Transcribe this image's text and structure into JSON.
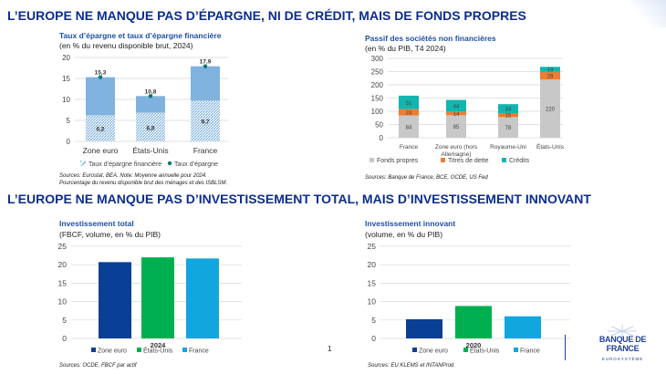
{
  "headings": {
    "top": "L’EUROPE NE MANQUE PAS D’ÉPARGNE, NI DE CRÉDIT, MAIS DE FONDS PROPRES",
    "bottom": "L’EUROPE NE MANQUE PAS D’INVESTISSEMENT TOTAL, MAIS D’INVESTISSEMENT INNOVANT"
  },
  "page_number": "1",
  "logo": {
    "name": "BANQUE DE FRANCE",
    "sub": "EUROSYSTÈME"
  },
  "colors": {
    "heading": "#0b2d8f",
    "zone_euro": "#0a3f96",
    "etats_unis": "#00b050",
    "france": "#12a6df",
    "fonds": "#c8c8c8",
    "titres": "#ed7d31",
    "credits": "#12b5b0",
    "epargne": "#7fb2de",
    "dot": "#007a6e"
  },
  "chart_data": [
    {
      "type": "bar",
      "title": "Taux d’épargne et taux d’épargne financière",
      "subtitle": "(en % du revenu disponible brut, 2024)",
      "categories": [
        "Zone euro",
        "États-Unis",
        "France"
      ],
      "series": [
        {
          "name": "Taux d’épargne financière",
          "values": [
            6.2,
            6.8,
            9.7
          ],
          "labels": [
            "6,2",
            "6,8",
            "9,7"
          ]
        },
        {
          "name": "Taux d’épargne",
          "values": [
            15.3,
            10.8,
            17.9
          ],
          "labels": [
            "15,3",
            "10,8",
            "17,9"
          ]
        }
      ],
      "yticks": [
        "0",
        "5",
        "10",
        "15",
        "20"
      ],
      "ylim": [
        0,
        20
      ],
      "grid": true,
      "legend": "bottom",
      "source": [
        "Sources: Eurostat, BEA. Note: Moyenne annuelle pour 2024.",
        "Pourcentage du revenu disponible brut des ménages et des ISBLSM."
      ]
    },
    {
      "type": "bar",
      "stacked": true,
      "title": "Passif des sociétés non financières",
      "subtitle": "(en % du PIB, T4 2024)",
      "categories": [
        "France",
        "Zone euro (hors|Allemagne)",
        "Royaume-Uni",
        "États-Unis"
      ],
      "series": [
        {
          "name": "Fonds propres",
          "values": [
            84,
            85,
            78,
            220
          ]
        },
        {
          "name": "Titres de dette",
          "values": [
            24,
            14,
            15,
            29
          ]
        },
        {
          "name": "Crédits",
          "values": [
            51,
            44,
            34,
            19
          ]
        }
      ],
      "yticks": [
        "0",
        "50",
        "100",
        "150",
        "200",
        "250",
        "300"
      ],
      "ylim": [
        0,
        300
      ],
      "grid": true,
      "legend": "bottom",
      "source": [
        "Sources: Banque de France, BCE, OCDE, US Fed"
      ]
    },
    {
      "type": "bar",
      "title": "Investissement total",
      "subtitle": "(FBCF, volume, en % du PIB)",
      "categories": [
        "2024"
      ],
      "series": [
        {
          "name": "Zone euro",
          "values": [
            20.7
          ]
        },
        {
          "name": "États-Unis",
          "values": [
            22.0
          ]
        },
        {
          "name": "France",
          "values": [
            21.7
          ]
        }
      ],
      "yticks": [
        "0",
        "5",
        "10",
        "15",
        "20",
        "25"
      ],
      "ylim": [
        0,
        25
      ],
      "grid": true,
      "legend": "bottom",
      "source": [
        "Sources: OCDE, FBCF par actif"
      ]
    },
    {
      "type": "bar",
      "title": "Investissement innovant",
      "subtitle": "(volume, en % du PIB)",
      "categories": [
        "2020"
      ],
      "series": [
        {
          "name": "Zone euro",
          "values": [
            5.2
          ]
        },
        {
          "name": "États-Unis",
          "values": [
            8.8
          ]
        },
        {
          "name": "France",
          "values": [
            6.0
          ]
        }
      ],
      "yticks": [
        "0",
        "5",
        "10",
        "15",
        "20",
        "25"
      ],
      "ylim": [
        0,
        25
      ],
      "grid": true,
      "legend": "bottom",
      "source": [
        "Sources: EU KLEMS et INTANProd"
      ]
    }
  ]
}
